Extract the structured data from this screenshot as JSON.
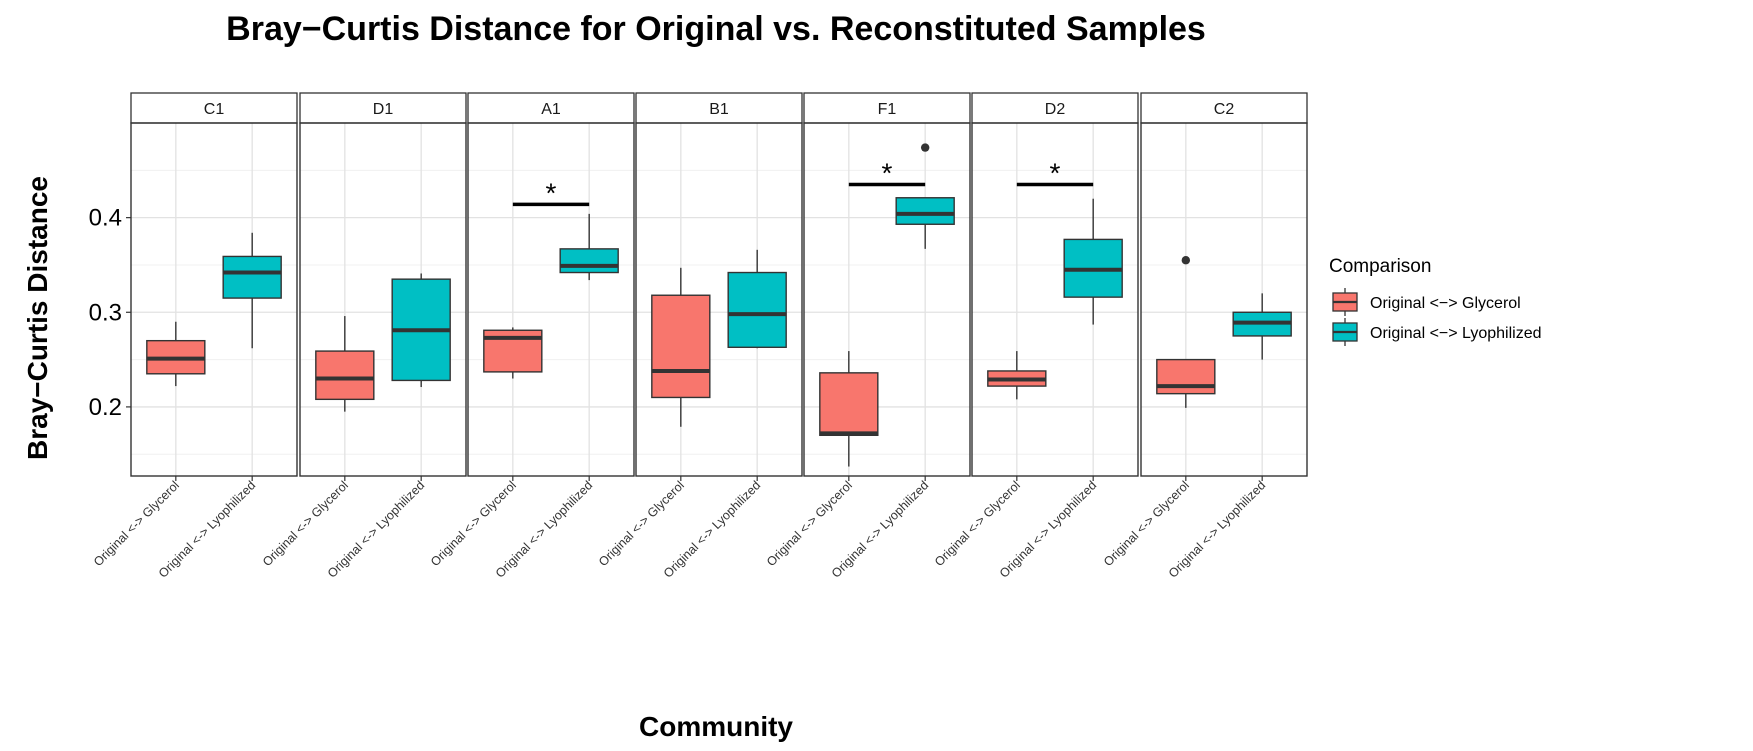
{
  "chart_data": {
    "type": "boxplot",
    "title": "Bray−Curtis Distance for Original vs. Reconstituted Samples",
    "xlabel": "Community",
    "ylabel": "Bray−Curtis Distance",
    "ylim": [
      0.127,
      0.5
    ],
    "yticks": [
      0.2,
      0.3,
      0.4
    ],
    "ytick_labels": [
      "0.2",
      "0.3",
      "0.4"
    ],
    "grid": true,
    "categories": [
      "Original <-> Glycerol",
      "Original <-> Lyophilized"
    ],
    "legend": {
      "title": "Comparison",
      "position": "right",
      "entries": [
        {
          "label": "Original <−> Glycerol",
          "color": "#F8766D"
        },
        {
          "label": "Original <−> Lyophilized",
          "color": "#00BFC4"
        }
      ]
    },
    "colors": {
      "glycerol": "#F8766D",
      "lyophilized": "#00BFC4"
    },
    "significance_marker": "*",
    "panels": [
      {
        "name": "C1",
        "glycerol": {
          "min": 0.222,
          "q1": 0.235,
          "median": 0.251,
          "q3": 0.27,
          "max": 0.29,
          "outliers": []
        },
        "lyophilized": {
          "min": 0.262,
          "q1": 0.315,
          "median": 0.342,
          "q3": 0.359,
          "max": 0.384,
          "outliers": []
        },
        "significance": null
      },
      {
        "name": "D1",
        "glycerol": {
          "min": 0.195,
          "q1": 0.208,
          "median": 0.23,
          "q3": 0.259,
          "max": 0.296,
          "outliers": []
        },
        "lyophilized": {
          "min": 0.221,
          "q1": 0.228,
          "median": 0.281,
          "q3": 0.335,
          "max": 0.341,
          "outliers": []
        },
        "significance": null
      },
      {
        "name": "A1",
        "glycerol": {
          "min": 0.23,
          "q1": 0.237,
          "median": 0.273,
          "q3": 0.281,
          "max": 0.284,
          "outliers": []
        },
        "lyophilized": {
          "min": 0.334,
          "q1": 0.342,
          "median": 0.349,
          "q3": 0.367,
          "max": 0.404,
          "outliers": []
        },
        "significance": 0.414
      },
      {
        "name": "B1",
        "glycerol": {
          "min": 0.179,
          "q1": 0.21,
          "median": 0.238,
          "q3": 0.318,
          "max": 0.347,
          "outliers": []
        },
        "lyophilized": {
          "min": 0.262,
          "q1": 0.263,
          "median": 0.298,
          "q3": 0.342,
          "max": 0.366,
          "outliers": []
        },
        "significance": null
      },
      {
        "name": "F1",
        "glycerol": {
          "min": 0.137,
          "q1": 0.17,
          "median": 0.172,
          "q3": 0.236,
          "max": 0.259,
          "outliers": []
        },
        "lyophilized": {
          "min": 0.367,
          "q1": 0.393,
          "median": 0.404,
          "q3": 0.421,
          "max": 0.421,
          "outliers": [
            0.474
          ]
        },
        "significance": 0.435
      },
      {
        "name": "D2",
        "glycerol": {
          "min": 0.208,
          "q1": 0.222,
          "median": 0.229,
          "q3": 0.238,
          "max": 0.259,
          "outliers": []
        },
        "lyophilized": {
          "min": 0.287,
          "q1": 0.316,
          "median": 0.345,
          "q3": 0.377,
          "max": 0.42,
          "outliers": []
        },
        "significance": 0.435
      },
      {
        "name": "C2",
        "glycerol": {
          "min": 0.199,
          "q1": 0.214,
          "median": 0.222,
          "q3": 0.25,
          "max": 0.25,
          "outliers": [
            0.355
          ]
        },
        "lyophilized": {
          "min": 0.25,
          "q1": 0.275,
          "median": 0.289,
          "q3": 0.3,
          "max": 0.32,
          "outliers": []
        },
        "significance": null
      }
    ]
  }
}
